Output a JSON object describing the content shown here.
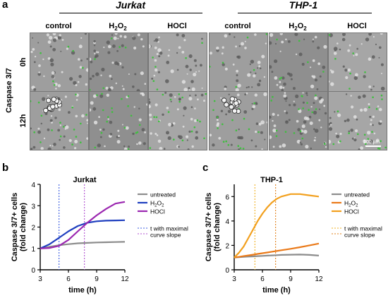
{
  "panel_a": {
    "letter": "a",
    "groups": [
      "Jurkat",
      "THP-1"
    ],
    "conditions": [
      "control",
      "H2O2",
      "HOCl"
    ],
    "row_axis_label": "Caspase 3/7",
    "rows": [
      "0h",
      "12h"
    ],
    "scalebar_label": "100 µm"
  },
  "chart_data": [
    {
      "letter": "b",
      "type": "line",
      "title": "Jurkat",
      "xlabel": "time (h)",
      "ylabel": "Caspase 3/7+ cells (fold change)",
      "xlim": [
        3,
        12
      ],
      "ylim": [
        0,
        4
      ],
      "xticks": [
        3,
        6,
        9,
        12
      ],
      "yticks": [
        0,
        1,
        2,
        3,
        4
      ],
      "x": [
        3,
        4,
        5,
        6,
        7,
        8,
        9,
        10,
        11,
        12
      ],
      "series": [
        {
          "name": "untreated",
          "color": "#8c8c8c",
          "values": [
            1.0,
            1.08,
            1.15,
            1.2,
            1.24,
            1.26,
            1.28,
            1.29,
            1.3,
            1.31
          ]
        },
        {
          "name": "H2O2",
          "color": "#1f3fbf",
          "values": [
            1.0,
            1.2,
            1.5,
            1.8,
            2.05,
            2.2,
            2.27,
            2.3,
            2.31,
            2.32
          ]
        },
        {
          "name": "HOCl",
          "color": "#9b27b0",
          "values": [
            1.0,
            1.02,
            1.12,
            1.4,
            1.8,
            2.2,
            2.55,
            2.85,
            3.1,
            3.18
          ]
        }
      ],
      "vlines": [
        {
          "x": 5.0,
          "color": "#3a5be0"
        },
        {
          "x": 7.7,
          "color": "#b04fd0"
        }
      ],
      "legend_extra": [
        "t with maximal",
        "curve slope"
      ],
      "legend_placement": "right"
    },
    {
      "letter": "c",
      "type": "line",
      "title": "THP-1",
      "xlabel": "time (h)",
      "ylabel": "Caspase 3/7+ cells (fold change)",
      "xlim": [
        3,
        12
      ],
      "ylim": [
        0,
        7
      ],
      "xticks": [
        3,
        6,
        9,
        12
      ],
      "yticks": [
        0,
        2,
        4,
        6
      ],
      "x": [
        3,
        3.5,
        4,
        4.5,
        5,
        5.5,
        6,
        6.5,
        7,
        7.5,
        8,
        9,
        10,
        11,
        12
      ],
      "series": [
        {
          "name": "untreated",
          "color": "#8c8c8c",
          "values": [
            1.0,
            1.03,
            1.06,
            1.08,
            1.1,
            1.12,
            1.14,
            1.16,
            1.18,
            1.2,
            1.22,
            1.24,
            1.25,
            1.22,
            1.16
          ]
        },
        {
          "name": "H2O2",
          "color": "#ea7a1a",
          "values": [
            1.0,
            1.06,
            1.12,
            1.18,
            1.24,
            1.3,
            1.36,
            1.42,
            1.48,
            1.54,
            1.6,
            1.72,
            1.85,
            2.0,
            2.15
          ]
        },
        {
          "name": "HOCl",
          "color": "#f2a01e",
          "values": [
            1.0,
            1.4,
            1.9,
            2.6,
            3.3,
            4.0,
            4.6,
            5.1,
            5.5,
            5.8,
            6.0,
            6.2,
            6.2,
            6.1,
            6.0
          ]
        }
      ],
      "vlines": [
        {
          "x": 5.2,
          "color": "#f0b020"
        },
        {
          "x": 7.4,
          "color": "#e0801a"
        }
      ],
      "legend_extra": [
        "t with maximal",
        "curve slope"
      ],
      "legend_placement": "right"
    }
  ]
}
